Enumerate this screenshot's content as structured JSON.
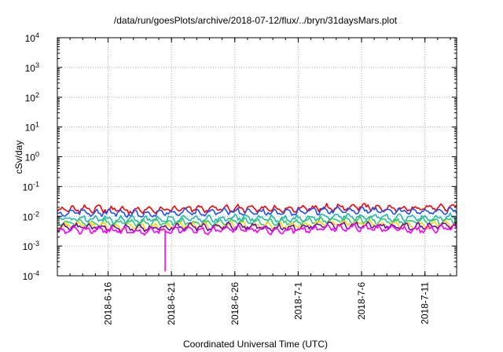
{
  "chart_data": {
    "type": "line",
    "title": "/data/run/goesPlots/archive/2018-07-12/flux/../bryn/31daysMars.plot",
    "xlabel": "Coordinated Universal Time (UTC)",
    "ylabel": "cSv/day",
    "xscale": "time",
    "yscale": "log",
    "xlim": [
      "2018-06-12",
      "2018-07-13 12:00"
    ],
    "ylim": [
      0.0001,
      10000
    ],
    "x_ticks": [
      "2018-6-16",
      "2018-6-21",
      "2018-6-26",
      "2018-7-1",
      "2018-7-6",
      "2018-7-11"
    ],
    "y_ticks": [
      {
        "base": "10",
        "exp": "-4",
        "value": 0.0001
      },
      {
        "base": "10",
        "exp": "-3",
        "value": 0.001
      },
      {
        "base": "10",
        "exp": "-2",
        "value": 0.01
      },
      {
        "base": "10",
        "exp": "-1",
        "value": 0.1
      },
      {
        "base": "10",
        "exp": "0",
        "value": 1
      },
      {
        "base": "10",
        "exp": "1",
        "value": 10
      },
      {
        "base": "10",
        "exp": "2",
        "value": 100
      },
      {
        "base": "10",
        "exp": "3",
        "value": 1000
      },
      {
        "base": "10",
        "exp": "4",
        "value": 10000
      }
    ],
    "grid": true,
    "legend": "none",
    "series": [
      {
        "color": "#ff0000",
        "x": [
          "2018-06-12",
          "2018-06-14",
          "2018-06-16",
          "2018-06-18",
          "2018-06-20",
          "2018-06-22",
          "2018-06-24",
          "2018-06-26",
          "2018-06-28",
          "2018-06-30",
          "2018-07-02",
          "2018-07-04",
          "2018-07-06",
          "2018-07-08",
          "2018-07-10",
          "2018-07-12",
          "2018-07-13"
        ],
        "y": [
          0.016,
          0.018,
          0.017,
          0.016,
          0.017,
          0.018,
          0.017,
          0.019,
          0.018,
          0.017,
          0.019,
          0.02,
          0.021,
          0.019,
          0.018,
          0.019,
          0.02
        ]
      },
      {
        "color": "#1e50ff",
        "x": [
          "2018-06-12",
          "2018-06-14",
          "2018-06-16",
          "2018-06-18",
          "2018-06-20",
          "2018-06-22",
          "2018-06-24",
          "2018-06-26",
          "2018-06-28",
          "2018-06-30",
          "2018-07-02",
          "2018-07-04",
          "2018-07-06",
          "2018-07-08",
          "2018-07-10",
          "2018-07-12",
          "2018-07-13"
        ],
        "y": [
          0.012,
          0.014,
          0.013,
          0.012,
          0.013,
          0.014,
          0.013,
          0.015,
          0.014,
          0.013,
          0.015,
          0.016,
          0.016,
          0.015,
          0.014,
          0.015,
          0.015
        ]
      },
      {
        "color": "#22b5b5",
        "x": [
          "2018-06-12",
          "2018-06-14",
          "2018-06-16",
          "2018-06-18",
          "2018-06-20",
          "2018-06-22",
          "2018-06-24",
          "2018-06-26",
          "2018-06-28",
          "2018-06-30",
          "2018-07-02",
          "2018-07-04",
          "2018-07-06",
          "2018-07-08",
          "2018-07-10",
          "2018-07-12",
          "2018-07-13"
        ],
        "y": [
          0.008,
          0.0085,
          0.008,
          0.0075,
          0.008,
          0.0085,
          0.008,
          0.009,
          0.0085,
          0.008,
          0.009,
          0.0095,
          0.01,
          0.009,
          0.0085,
          0.009,
          0.0095
        ]
      },
      {
        "color": "#2ecc71",
        "x": [
          "2018-06-12",
          "2018-06-14",
          "2018-06-16",
          "2018-06-18",
          "2018-06-20",
          "2018-06-22",
          "2018-06-24",
          "2018-06-26",
          "2018-06-28",
          "2018-06-30",
          "2018-07-02",
          "2018-07-04",
          "2018-07-06",
          "2018-07-08",
          "2018-07-10",
          "2018-07-12",
          "2018-07-13"
        ],
        "y": [
          0.006,
          0.0065,
          0.006,
          0.0058,
          0.006,
          0.0065,
          0.006,
          0.0068,
          0.0064,
          0.006,
          0.0068,
          0.007,
          0.0075,
          0.0068,
          0.0064,
          0.0068,
          0.007
        ]
      },
      {
        "color": "#ffd700",
        "x": [
          "2018-06-12",
          "2018-06-14",
          "2018-06-16",
          "2018-06-18",
          "2018-06-20",
          "2018-06-22",
          "2018-06-24",
          "2018-06-26",
          "2018-06-28",
          "2018-06-30",
          "2018-07-02",
          "2018-07-04",
          "2018-07-06",
          "2018-07-08",
          "2018-07-10",
          "2018-07-12",
          "2018-07-13"
        ],
        "y": [
          0.0045,
          0.005,
          0.0046,
          0.0042,
          0.0045,
          0.005,
          0.0046,
          0.0052,
          0.0048,
          0.0046,
          0.0052,
          0.0055,
          0.0058,
          0.0052,
          0.0048,
          0.0052,
          0.0055
        ]
      },
      {
        "color": "#6a0dad",
        "x": [
          "2018-06-12",
          "2018-06-14",
          "2018-06-16",
          "2018-06-18",
          "2018-06-20",
          "2018-06-22",
          "2018-06-24",
          "2018-06-26",
          "2018-06-28",
          "2018-06-30",
          "2018-07-02",
          "2018-07-04",
          "2018-07-06",
          "2018-07-08",
          "2018-07-10",
          "2018-07-12",
          "2018-07-13"
        ],
        "y": [
          0.004,
          0.0045,
          0.0042,
          0.0038,
          0.004,
          0.0045,
          0.0042,
          0.0047,
          0.0043,
          0.0041,
          0.0047,
          0.005,
          0.0052,
          0.0047,
          0.0043,
          0.0047,
          0.005
        ]
      },
      {
        "color": "#ff00ff",
        "x": [
          "2018-06-12",
          "2018-06-14",
          "2018-06-16",
          "2018-06-18",
          "2018-06-20",
          "2018-06-20 12:00",
          "2018-06-21",
          "2018-06-22",
          "2018-06-24",
          "2018-06-26",
          "2018-06-28",
          "2018-06-30",
          "2018-07-02",
          "2018-07-04",
          "2018-07-06",
          "2018-07-08",
          "2018-07-10",
          "2018-07-12",
          "2018-07-13"
        ],
        "y": [
          0.0032,
          0.0036,
          0.0033,
          0.003,
          0.0032,
          0.00014,
          0.0033,
          0.0036,
          0.0033,
          0.0038,
          0.0034,
          0.0032,
          0.0038,
          0.004,
          0.0042,
          0.0038,
          0.0034,
          0.0038,
          0.004
        ]
      }
    ]
  }
}
